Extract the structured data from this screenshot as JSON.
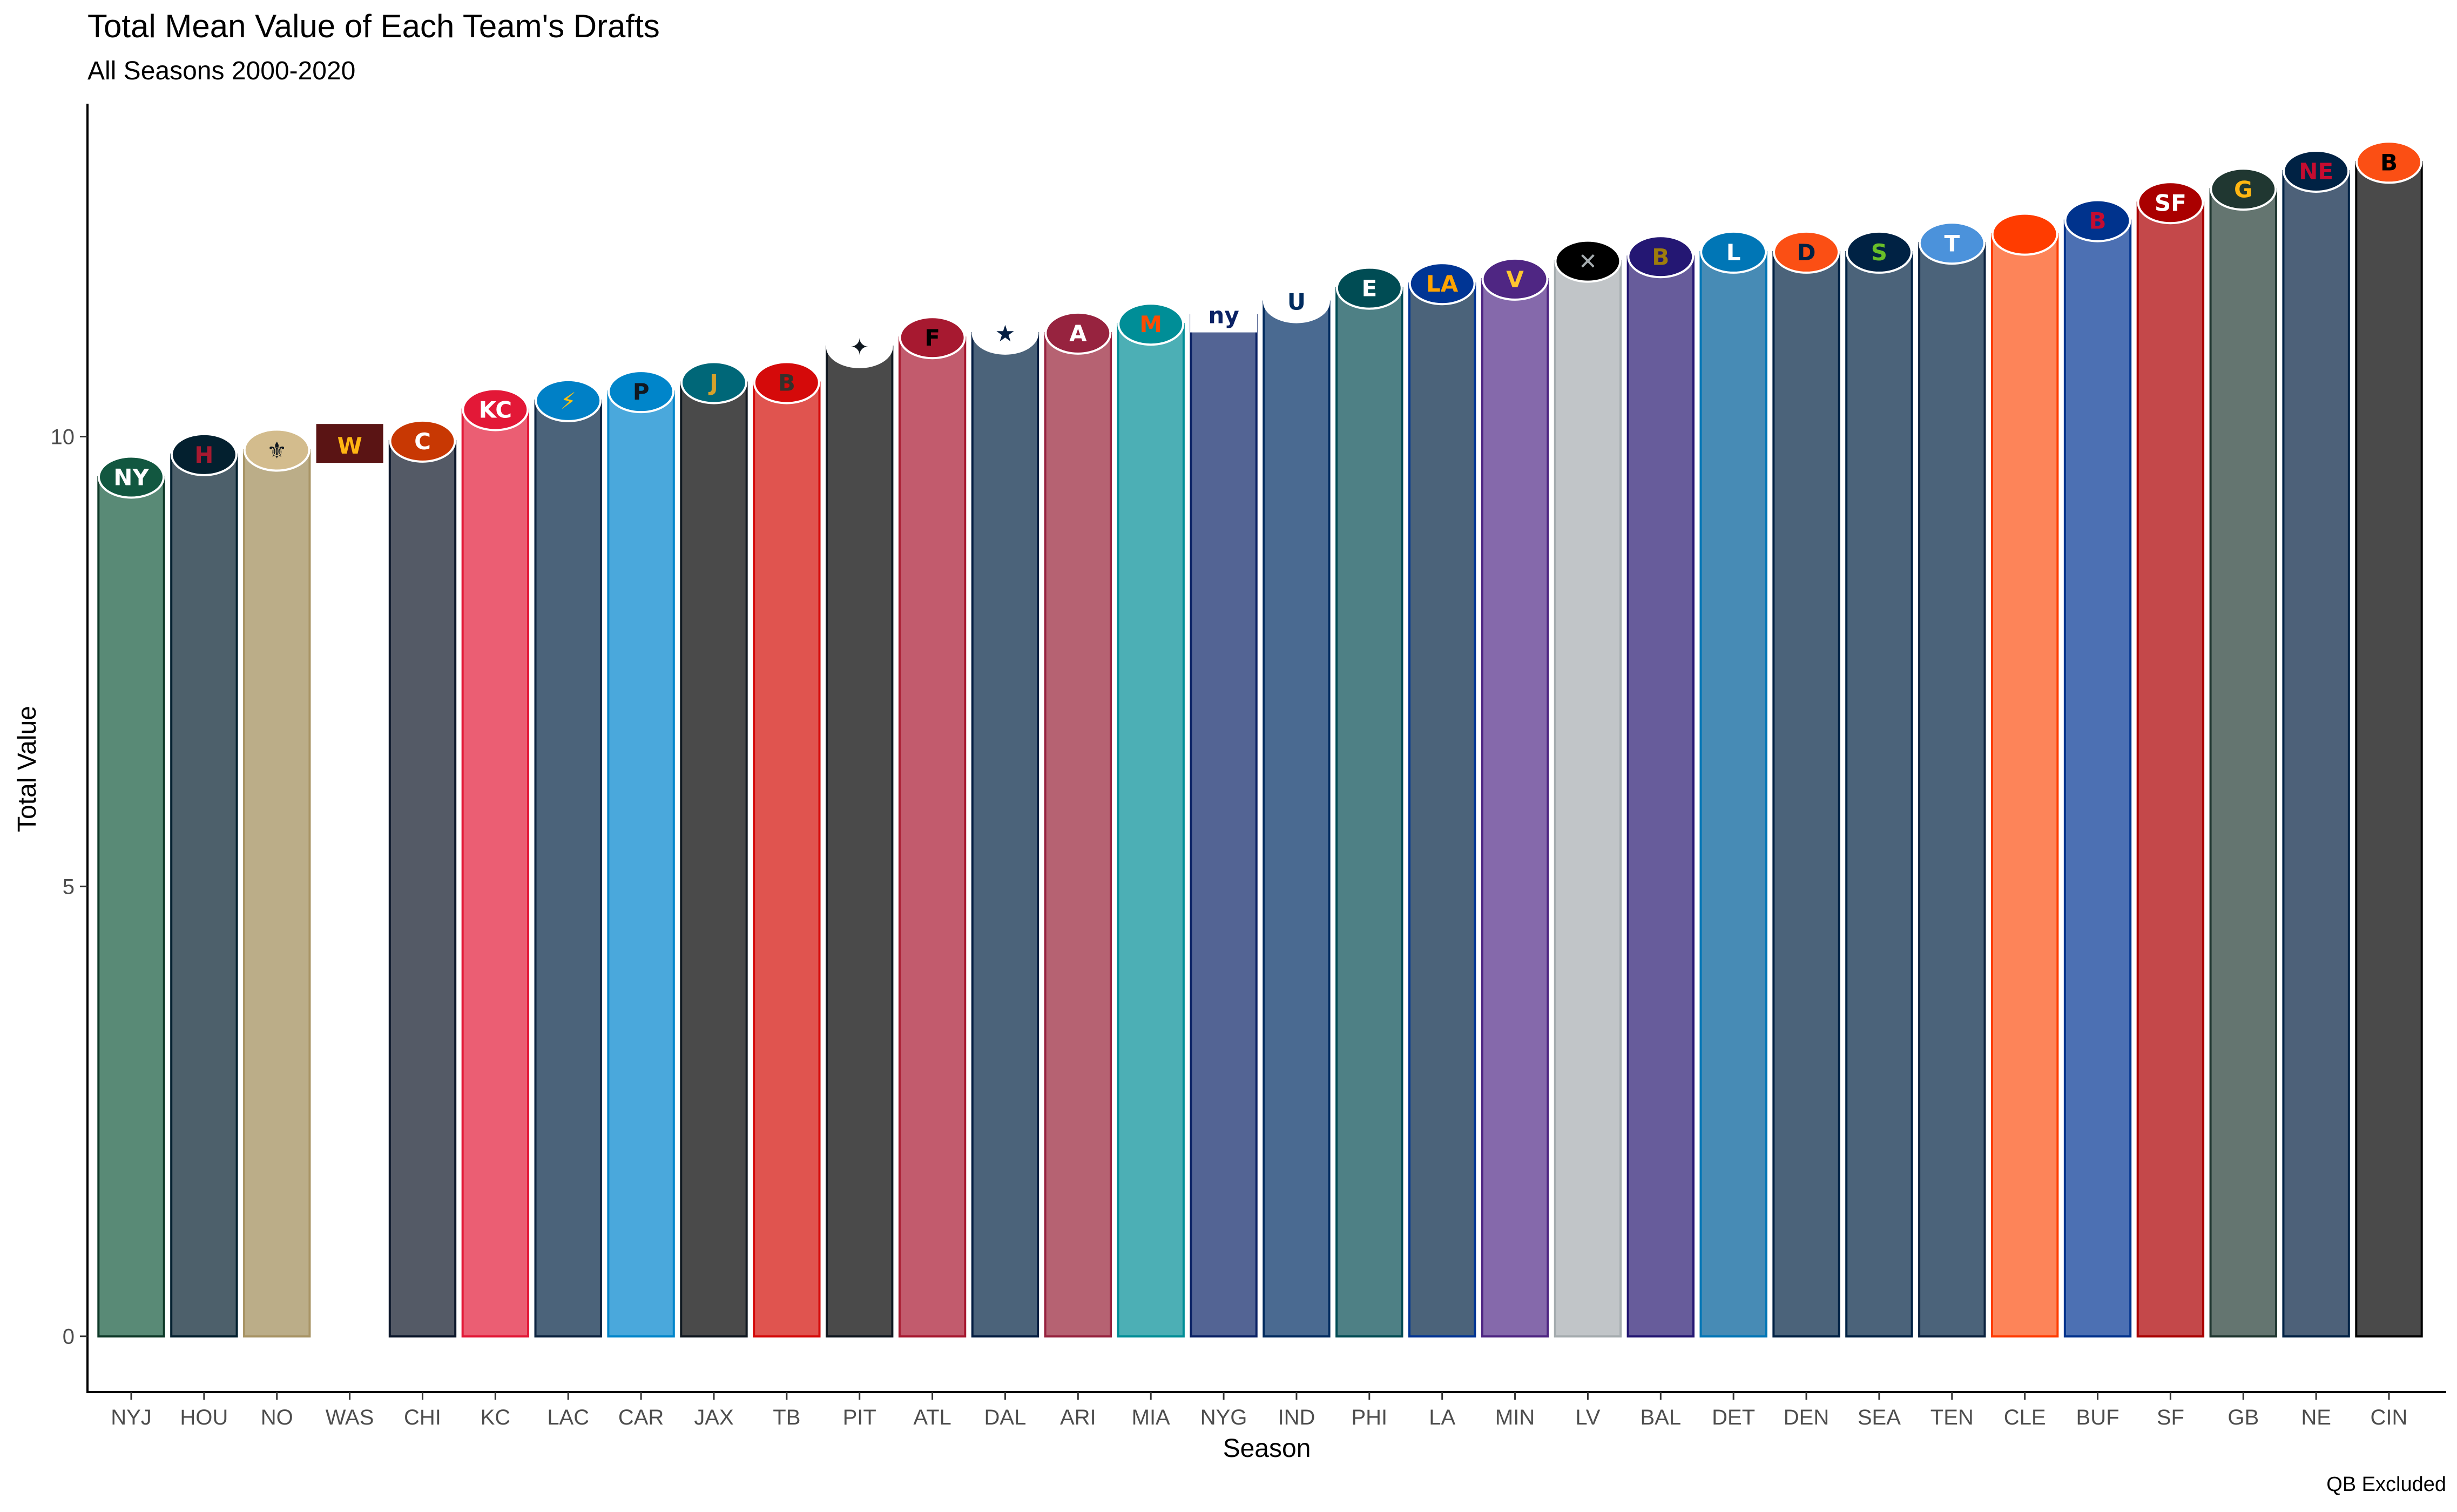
{
  "chart_data": {
    "type": "bar",
    "title": "Total Mean Value of Each Team's Drafts",
    "subtitle": "All Seasons 2000-2020",
    "xlabel": "Season",
    "ylabel": "Total Value",
    "caption": "QB Excluded",
    "ylim": [
      -0.62,
      13.7
    ],
    "yticks": [
      0,
      5,
      10
    ],
    "grid": false,
    "legend": "none",
    "categories": [
      "NYJ",
      "HOU",
      "NO",
      "WAS",
      "CHI",
      "KC",
      "LAC",
      "CAR",
      "JAX",
      "TB",
      "PIT",
      "ATL",
      "DAL",
      "ARI",
      "MIA",
      "NYG",
      "IND",
      "PHI",
      "LA",
      "MIN",
      "LV",
      "BAL",
      "DET",
      "DEN",
      "SEA",
      "TEN",
      "CLE",
      "BUF",
      "SF",
      "GB",
      "NE",
      "CIN"
    ],
    "values": [
      9.55,
      9.8,
      9.85,
      9.9,
      9.95,
      10.3,
      10.4,
      10.5,
      10.6,
      10.6,
      11.0,
      11.1,
      11.15,
      11.15,
      11.25,
      11.35,
      11.5,
      11.65,
      11.7,
      11.75,
      11.95,
      12.0,
      12.05,
      12.05,
      12.05,
      12.15,
      12.25,
      12.4,
      12.6,
      12.75,
      12.95,
      13.05
    ],
    "colors": [
      {
        "fill": "#598a76",
        "stroke": "#0f3a29"
      },
      {
        "fill": "#4d606b",
        "stroke": "#03202f"
      },
      {
        "fill": "#bbad88",
        "stroke": "#a89465"
      },
      {
        "fill": "#ffffff",
        "stroke": "#ffffff"
      },
      {
        "fill": "#545a66",
        "stroke": "#0b162a"
      },
      {
        "fill": "#eb5e73",
        "stroke": "#e31837"
      },
      {
        "fill": "#4b637a",
        "stroke": "#0c2340"
      },
      {
        "fill": "#4aa8dc",
        "stroke": "#0085ca"
      },
      {
        "fill": "#4a4a4a",
        "stroke": "#101820"
      },
      {
        "fill": "#e0544f",
        "stroke": "#d50a0a"
      },
      {
        "fill": "#4a4a4a",
        "stroke": "#101820"
      },
      {
        "fill": "#c25b6d",
        "stroke": "#a71930"
      },
      {
        "fill": "#4b637a",
        "stroke": "#041e42"
      },
      {
        "fill": "#b66272",
        "stroke": "#97233f"
      },
      {
        "fill": "#4cafb5",
        "stroke": "#008e97"
      },
      {
        "fill": "#536494",
        "stroke": "#0b2265"
      },
      {
        "fill": "#4a6a91",
        "stroke": "#002c5f"
      },
      {
        "fill": "#4e8085",
        "stroke": "#004c54"
      },
      {
        "fill": "#4b637a",
        "stroke": "#003594"
      },
      {
        "fill": "#8569ab",
        "stroke": "#4f2683"
      },
      {
        "fill": "#c1c5c8",
        "stroke": "#a5acaf"
      },
      {
        "fill": "#675c9b",
        "stroke": "#241773"
      },
      {
        "fill": "#478bb5",
        "stroke": "#0076b6"
      },
      {
        "fill": "#4b637a",
        "stroke": "#002244"
      },
      {
        "fill": "#4b637a",
        "stroke": "#002244"
      },
      {
        "fill": "#4b637a",
        "stroke": "#0c2340"
      },
      {
        "fill": "#fd8459",
        "stroke": "#ff3c00"
      },
      {
        "fill": "#4c70b3",
        "stroke": "#00338d"
      },
      {
        "fill": "#c4484a",
        "stroke": "#aa0000"
      },
      {
        "fill": "#647570",
        "stroke": "#203731"
      },
      {
        "fill": "#4d6179",
        "stroke": "#002244"
      },
      {
        "fill": "#4a4a4a",
        "stroke": "#000000"
      }
    ],
    "logos": [
      {
        "shape": "ellipse",
        "bg": "#125740",
        "fg": "#ffffff",
        "text": "NY"
      },
      {
        "shape": "ellipse",
        "bg": "#03202f",
        "fg": "#a71930",
        "text": "H"
      },
      {
        "shape": "ellipse",
        "bg": "#d3bc8d",
        "fg": "#101820",
        "text": "⚜"
      },
      {
        "shape": "rect",
        "bg": "#5a1414",
        "fg": "#ffb612",
        "text": "W"
      },
      {
        "shape": "ellipse",
        "bg": "#c83803",
        "fg": "#ffffff",
        "text": "C"
      },
      {
        "shape": "ellipse",
        "bg": "#e31837",
        "fg": "#ffffff",
        "text": "KC"
      },
      {
        "shape": "ellipse",
        "bg": "#0080c6",
        "fg": "#ffc20e",
        "text": "⚡"
      },
      {
        "shape": "ellipse",
        "bg": "#0085ca",
        "fg": "#101820",
        "text": "P"
      },
      {
        "shape": "ellipse",
        "bg": "#006778",
        "fg": "#d7a22a",
        "text": "J"
      },
      {
        "shape": "ellipse",
        "bg": "#d50a0a",
        "fg": "#34302b",
        "text": "B"
      },
      {
        "shape": "ellipse",
        "bg": "#ffffff",
        "fg": "#101820",
        "text": "✦"
      },
      {
        "shape": "ellipse",
        "bg": "#a71930",
        "fg": "#000000",
        "text": "F"
      },
      {
        "shape": "ellipse",
        "bg": "#ffffff",
        "fg": "#041e42",
        "text": "★"
      },
      {
        "shape": "ellipse",
        "bg": "#97233f",
        "fg": "#ffffff",
        "text": "A"
      },
      {
        "shape": "ellipse",
        "bg": "#008e97",
        "fg": "#fc4c02",
        "text": "M"
      },
      {
        "shape": "rect",
        "bg": "#ffffff",
        "fg": "#0b2265",
        "text": "ny"
      },
      {
        "shape": "ellipse",
        "bg": "#ffffff",
        "fg": "#002c5f",
        "text": "U"
      },
      {
        "shape": "ellipse",
        "bg": "#004c54",
        "fg": "#ffffff",
        "text": "E"
      },
      {
        "shape": "ellipse",
        "bg": "#003594",
        "fg": "#ffa300",
        "text": "LA"
      },
      {
        "shape": "ellipse",
        "bg": "#4f2683",
        "fg": "#ffc62f",
        "text": "V"
      },
      {
        "shape": "ellipse",
        "bg": "#000000",
        "fg": "#a5acaf",
        "text": "✕"
      },
      {
        "shape": "ellipse",
        "bg": "#241773",
        "fg": "#9e7c0c",
        "text": "B"
      },
      {
        "shape": "ellipse",
        "bg": "#0076b6",
        "fg": "#ffffff",
        "text": "L"
      },
      {
        "shape": "ellipse",
        "bg": "#fb4f14",
        "fg": "#002244",
        "text": "D"
      },
      {
        "shape": "ellipse",
        "bg": "#002244",
        "fg": "#69be28",
        "text": "S"
      },
      {
        "shape": "ellipse",
        "bg": "#4b92db",
        "fg": "#ffffff",
        "text": "T"
      },
      {
        "shape": "ellipse",
        "bg": "#ff3c00",
        "fg": "#ffffff",
        "text": ""
      },
      {
        "shape": "ellipse",
        "bg": "#00338d",
        "fg": "#c60c30",
        "text": "B"
      },
      {
        "shape": "ellipse",
        "bg": "#aa0000",
        "fg": "#ffffff",
        "text": "SF"
      },
      {
        "shape": "ellipse",
        "bg": "#203731",
        "fg": "#ffb612",
        "text": "G"
      },
      {
        "shape": "ellipse",
        "bg": "#002244",
        "fg": "#c60c30",
        "text": "NE"
      },
      {
        "shape": "ellipse",
        "bg": "#fb4f14",
        "fg": "#000000",
        "text": "B"
      }
    ]
  }
}
